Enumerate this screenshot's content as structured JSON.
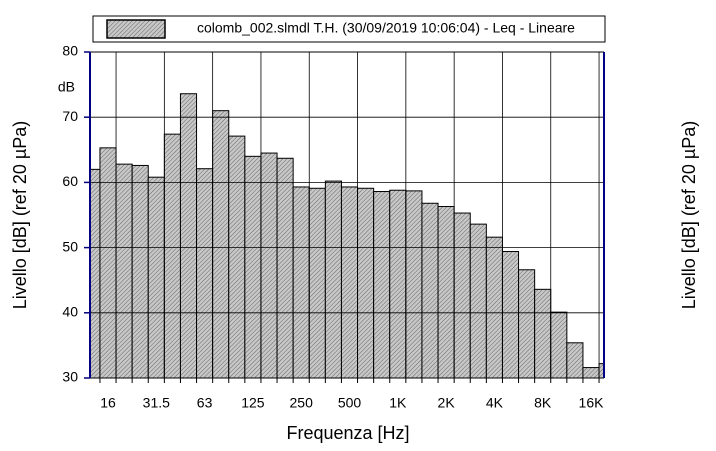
{
  "chart_data": {
    "type": "bar",
    "legend_label": "colomb_002.slmdl T.H. (30/09/2019 10:06:04) - Leq - Lineare",
    "x_label": "Frequenza [Hz]",
    "y_label": "Livello [dB] (ref 20 µPa)",
    "y2_label": "Livello [dB] (ref 20 µPa)",
    "y_unit": "dB",
    "categories": [
      null,
      "16",
      null,
      null,
      "31.5",
      null,
      null,
      "63",
      null,
      null,
      "125",
      null,
      null,
      "250",
      null,
      null,
      "500",
      null,
      null,
      "1K",
      null,
      null,
      "2K",
      null,
      null,
      "4K",
      null,
      null,
      "8K",
      null,
      null,
      "16K",
      null
    ],
    "values": [
      62,
      65.3,
      62.8,
      62.6,
      60.8,
      67.4,
      73.6,
      62.1,
      71,
      67.1,
      64,
      64.5,
      63.7,
      59.3,
      59.1,
      60.2,
      59.3,
      59.1,
      58.6,
      58.8,
      58.7,
      56.8,
      56.3,
      55.3,
      53.6,
      51.6,
      49.4,
      46.6,
      43.6,
      40.1,
      35.4,
      31.6,
      32.2
    ],
    "color": "#c8c8c8",
    "ylim": [
      30,
      80
    ],
    "yticks": [
      30,
      40,
      50,
      60,
      70,
      80
    ],
    "grid": true
  }
}
